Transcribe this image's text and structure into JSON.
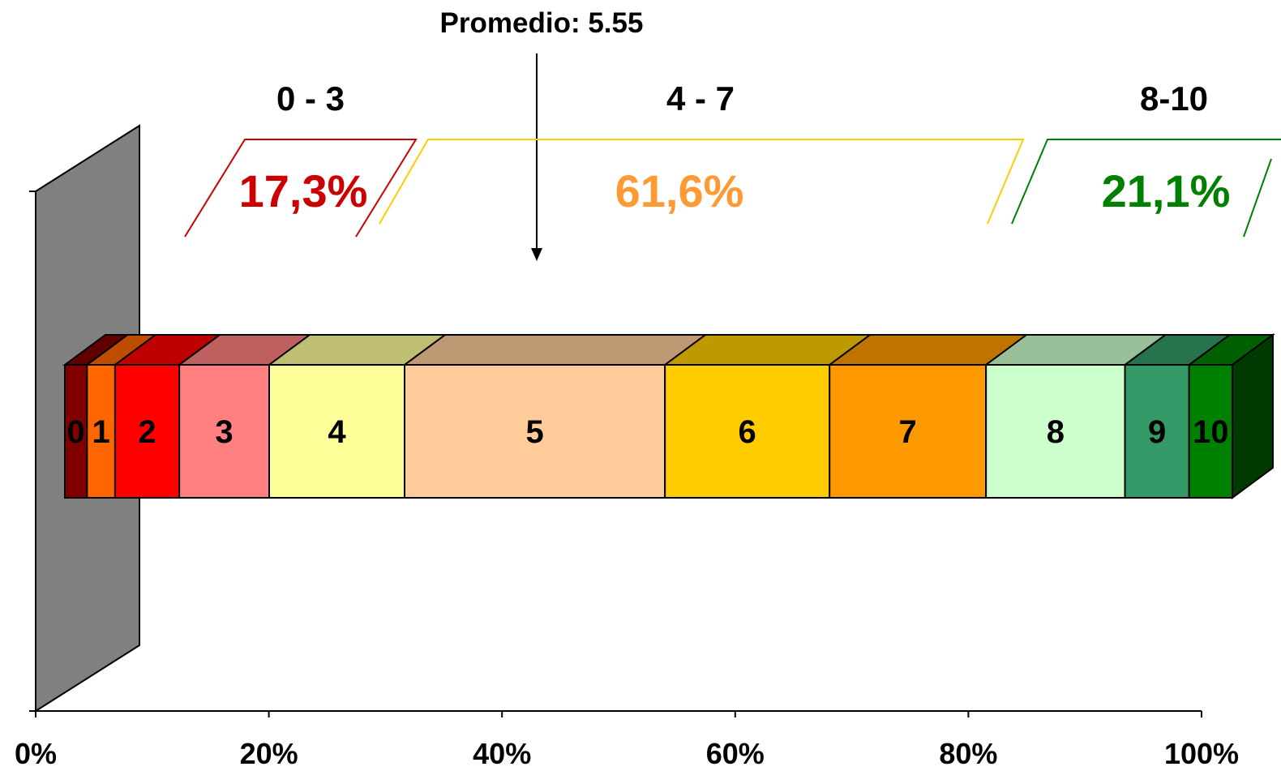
{
  "chart_data": {
    "type": "bar",
    "orientation": "horizontal",
    "stacked": true,
    "percent_stacked": true,
    "three_d": true,
    "series": [
      {
        "name": "0",
        "value": 1.9,
        "color": "#800000",
        "label": "0"
      },
      {
        "name": "1",
        "value": 2.4,
        "color": "#ff6600",
        "label": "1"
      },
      {
        "name": "2",
        "value": 5.5,
        "color": "#ff0000",
        "label": "2"
      },
      {
        "name": "3",
        "value": 7.7,
        "color": "#ff8080",
        "label": "3"
      },
      {
        "name": "4",
        "value": 11.6,
        "color": "#ffff99",
        "label": "4"
      },
      {
        "name": "5",
        "value": 22.3,
        "color": "#ffcc99",
        "label": "5"
      },
      {
        "name": "6",
        "value": 14.1,
        "color": "#ffcc00",
        "label": "6"
      },
      {
        "name": "7",
        "value": 13.4,
        "color": "#ff9900",
        "label": "7"
      },
      {
        "name": "8",
        "value": 11.9,
        "color": "#ccffcc",
        "label": "8"
      },
      {
        "name": "9",
        "value": 5.5,
        "color": "#339966",
        "label": "9"
      },
      {
        "name": "10",
        "value": 3.7,
        "color": "#008000",
        "label": "10"
      }
    ],
    "x_ticks": [
      "0%",
      "20%",
      "40%",
      "60%",
      "80%",
      "100%"
    ],
    "xlim": [
      0,
      100
    ],
    "legend": "none",
    "grid": false
  },
  "annotations": {
    "average": {
      "text": "Promedio: 5.55",
      "value": 5.55
    },
    "groups": [
      {
        "range_label": "0 - 3",
        "percent": "17,3%",
        "color": "#cc0000"
      },
      {
        "range_label": "4 - 7",
        "percent": "61,6%",
        "color": "#ff9933"
      },
      {
        "range_label": "8-10",
        "percent": "21,1%",
        "color": "#008000"
      }
    ]
  }
}
